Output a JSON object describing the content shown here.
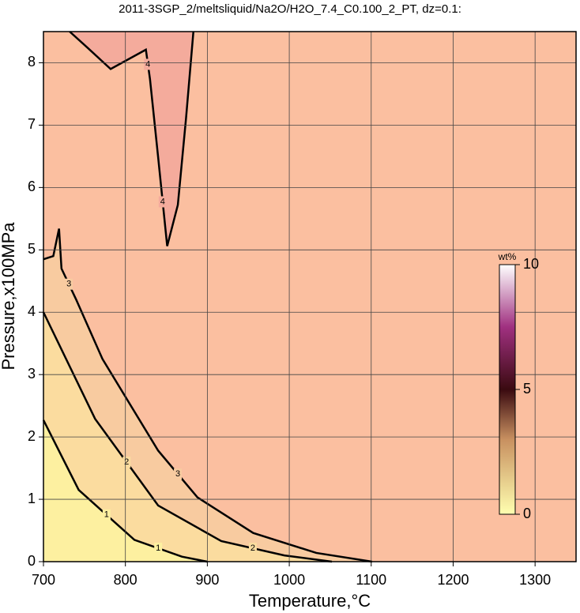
{
  "chart_data": {
    "type": "contour",
    "title": "2011-3SGP_2/meltsliquid/Na2O/H2O_7.4_C0.100_2_PT, dz=0.1:",
    "x_label": "Temperature,°C",
    "y_label": "Pressure,x100MPa",
    "xlim": [
      700,
      1350
    ],
    "ylim": [
      0,
      8.5
    ],
    "xticks": [
      700,
      800,
      900,
      1000,
      1100,
      1200,
      1300
    ],
    "yticks": [
      0,
      1,
      2,
      3,
      4,
      5,
      6,
      7,
      8
    ],
    "grid": true,
    "background": "#fbbfa0",
    "contours": [
      {
        "level": 3,
        "fill": "#f8cba0",
        "x": [
          700,
          712,
          719,
          722,
          740,
          772,
          840,
          888,
          956,
          1033,
          1101
        ],
        "y": [
          4.85,
          4.9,
          5.34,
          4.7,
          4.2,
          3.25,
          1.78,
          1.03,
          0.46,
          0.14,
          0
        ]
      },
      {
        "level": 2,
        "fill": "#fbdc9f",
        "x": [
          700,
          763,
          840,
          917,
          994,
          1052
        ],
        "y": [
          4.0,
          2.29,
          0.9,
          0.33,
          0.1,
          0
        ]
      },
      {
        "level": 1,
        "fill": "#fdf0a0",
        "x": [
          700,
          743,
          811,
          869,
          900
        ],
        "y": [
          2.27,
          1.15,
          0.35,
          0.08,
          0
        ]
      },
      {
        "level": 4,
        "fill": "#f4ab9c",
        "x": [
          732,
          753,
          782,
          825,
          830,
          840,
          851,
          864,
          874,
          883
        ],
        "y": [
          8.5,
          8.25,
          7.9,
          8.21,
          7.74,
          6.48,
          5.06,
          5.72,
          7.11,
          8.5
        ]
      }
    ],
    "colorbar": {
      "label": "wt%",
      "lim": [
        0,
        10
      ],
      "ticks": [
        0,
        5,
        10
      ]
    }
  }
}
